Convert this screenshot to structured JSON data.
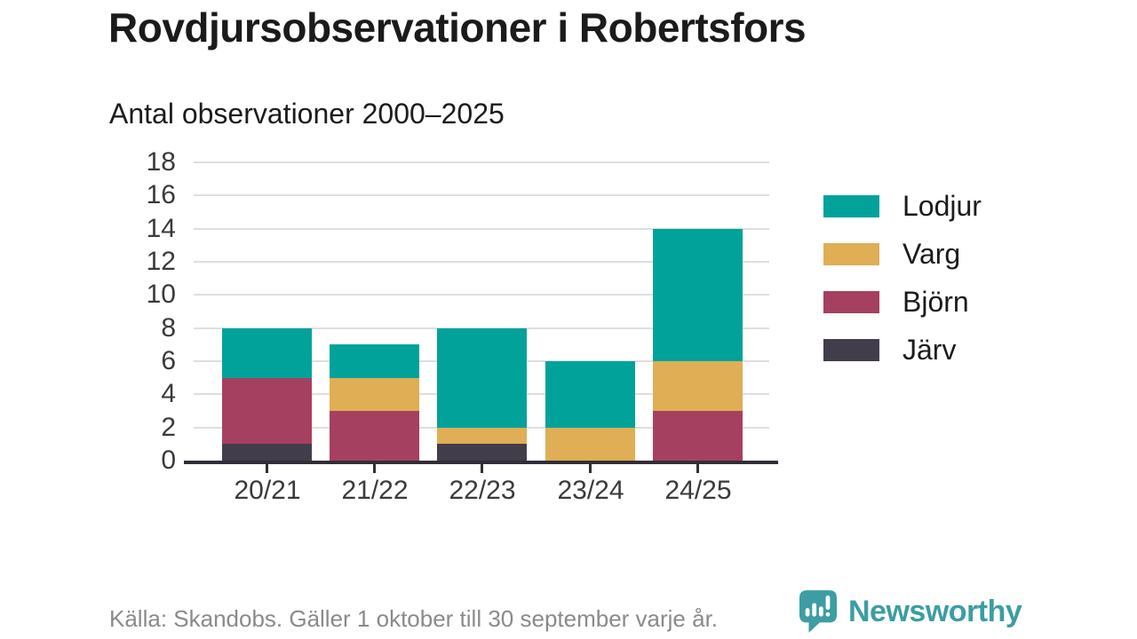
{
  "chart_data": {
    "type": "bar",
    "stacked": true,
    "title": "Rovdjursobservationer i Robertsfors",
    "subtitle": "Antal observationer 2000–2025",
    "categories": [
      "20/21",
      "21/22",
      "22/23",
      "23/24",
      "24/25"
    ],
    "series": [
      {
        "name": "Järv",
        "key": "jarv",
        "color": "#423d4b",
        "values": [
          1,
          0,
          1,
          0,
          0
        ]
      },
      {
        "name": "Björn",
        "key": "bjorn",
        "color": "#a64060",
        "values": [
          4,
          3,
          0,
          0,
          3
        ]
      },
      {
        "name": "Varg",
        "key": "varg",
        "color": "#dfae55",
        "values": [
          0,
          2,
          1,
          2,
          3
        ]
      },
      {
        "name": "Lodjur",
        "key": "lodjur",
        "color": "#00a29a",
        "values": [
          3,
          2,
          6,
          4,
          8
        ]
      }
    ],
    "totals": [
      8,
      7,
      8,
      6,
      14
    ],
    "ylim": [
      0,
      18
    ],
    "yticks": [
      0,
      2,
      4,
      6,
      8,
      10,
      12,
      14,
      16,
      18
    ],
    "xlabel": "",
    "ylabel": "",
    "grid": true,
    "legend_position": "right",
    "legend_order": [
      "Lodjur",
      "Varg",
      "Björn",
      "Järv"
    ]
  },
  "footer": {
    "source": "Källa: Skandobs. Gäller 1 oktober till 30 september varje år.",
    "brand": "Newsworthy"
  },
  "colors": {
    "brand_teal": "#3c9da3",
    "axis": "#312e38",
    "grid": "#dedede",
    "tick_text": "#3a3a3a",
    "title_text": "#1b1b1b",
    "muted_text": "#8a8a8a"
  }
}
